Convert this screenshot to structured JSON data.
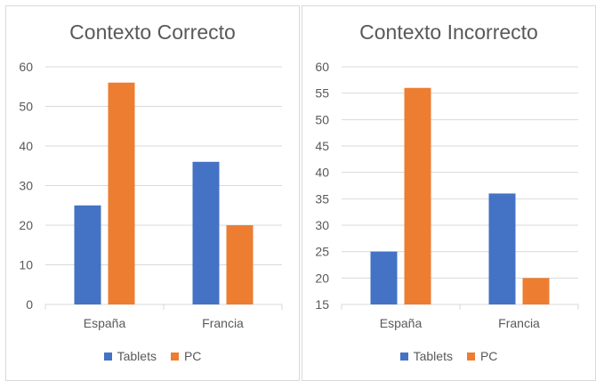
{
  "chart_data": [
    {
      "type": "bar",
      "title": "Contexto Correcto",
      "categories": [
        "España",
        "Francia"
      ],
      "series": [
        {
          "name": "Tablets",
          "values": [
            25,
            36
          ],
          "color": "#4472c4"
        },
        {
          "name": "PC",
          "values": [
            56,
            20
          ],
          "color": "#ed7d31"
        }
      ],
      "ylim": [
        0,
        60
      ],
      "yticks": [
        0,
        10,
        20,
        30,
        40,
        50,
        60
      ],
      "grid": true,
      "legend": "bottom"
    },
    {
      "type": "bar",
      "title": "Contexto Incorrecto",
      "categories": [
        "España",
        "Francia"
      ],
      "series": [
        {
          "name": "Tablets",
          "values": [
            25,
            36
          ],
          "color": "#4472c4"
        },
        {
          "name": "PC",
          "values": [
            56,
            20
          ],
          "color": "#ed7d31"
        }
      ],
      "ylim": [
        15,
        60
      ],
      "yticks": [
        15,
        20,
        25,
        30,
        35,
        40,
        45,
        50,
        55,
        60
      ],
      "grid": true,
      "legend": "bottom"
    }
  ]
}
